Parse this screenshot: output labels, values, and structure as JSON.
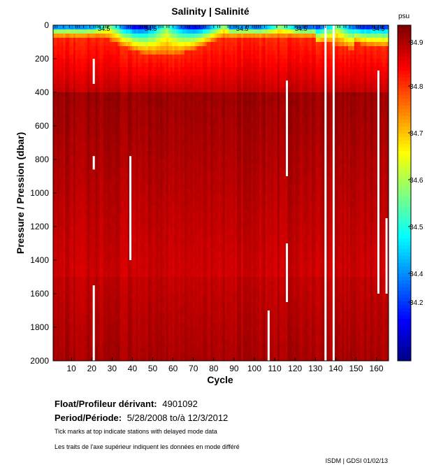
{
  "chart_data": {
    "type": "heatmap",
    "title": "Salinity | Salinité",
    "xlabel": "Cycle",
    "ylabel": "Pressure / Pression (dbar)",
    "x_ticks": [
      10,
      20,
      30,
      40,
      50,
      60,
      70,
      80,
      90,
      100,
      110,
      120,
      130,
      140,
      150,
      160
    ],
    "xlim": [
      1,
      166
    ],
    "y_ticks": [
      0,
      200,
      400,
      600,
      800,
      1000,
      1200,
      1400,
      1600,
      1800,
      2000
    ],
    "ylim": [
      0,
      2000
    ],
    "y_reversed": true,
    "colorbar": {
      "unit": "psu",
      "ticks": [
        "34.9",
        "34.8",
        "34.7",
        "34.6",
        "34.5",
        "34.4",
        "34.2"
      ],
      "range": [
        34.15,
        34.95
      ],
      "colormap": "jet"
    },
    "contour_labels": [
      "34.5",
      "34.5",
      "34.5",
      "34.5",
      "34.5"
    ],
    "field_summary": {
      "surface_fresh_min": 34.15,
      "mid_depth_max": 34.93,
      "deep_value": 34.9
    },
    "gaps": [
      {
        "cycle": 21,
        "p_from": 200,
        "p_to": 350
      },
      {
        "cycle": 21,
        "p_from": 780,
        "p_to": 860
      },
      {
        "cycle": 21,
        "p_from": 1550,
        "p_to": 2000
      },
      {
        "cycle": 39,
        "p_from": 780,
        "p_to": 1400
      },
      {
        "cycle": 107,
        "p_from": 1700,
        "p_to": 1800
      },
      {
        "cycle": 107,
        "p_from": 1800,
        "p_to": 2000
      },
      {
        "cycle": 116,
        "p_from": 330,
        "p_to": 900
      },
      {
        "cycle": 116,
        "p_from": 1300,
        "p_to": 1650
      },
      {
        "cycle": 135,
        "p_from": 0,
        "p_to": 2000
      },
      {
        "cycle": 139,
        "p_from": 0,
        "p_to": 2000
      },
      {
        "cycle": 161,
        "p_from": 270,
        "p_to": 1600
      },
      {
        "cycle": 165,
        "p_from": 1150,
        "p_to": 1250
      },
      {
        "cycle": 165,
        "p_from": 1250,
        "p_to": 1600
      }
    ]
  },
  "info": {
    "float_label": "Float/Profileur dérivant:",
    "float_value": "4901092",
    "period_label": "Period/Période:",
    "period_value": "5/28/2008  to/à  12/3/2012",
    "note_en": "Tick marks at top indicate stations with delayed mode data",
    "note_fr": "Les traits de l'axe supérieur indiquent les données en mode différé",
    "credit": "ISDM | GDSI  01/02/13"
  },
  "colors": {
    "deep_red": "#a50000",
    "red": "#ee1c10",
    "gap": "#ffffff"
  }
}
